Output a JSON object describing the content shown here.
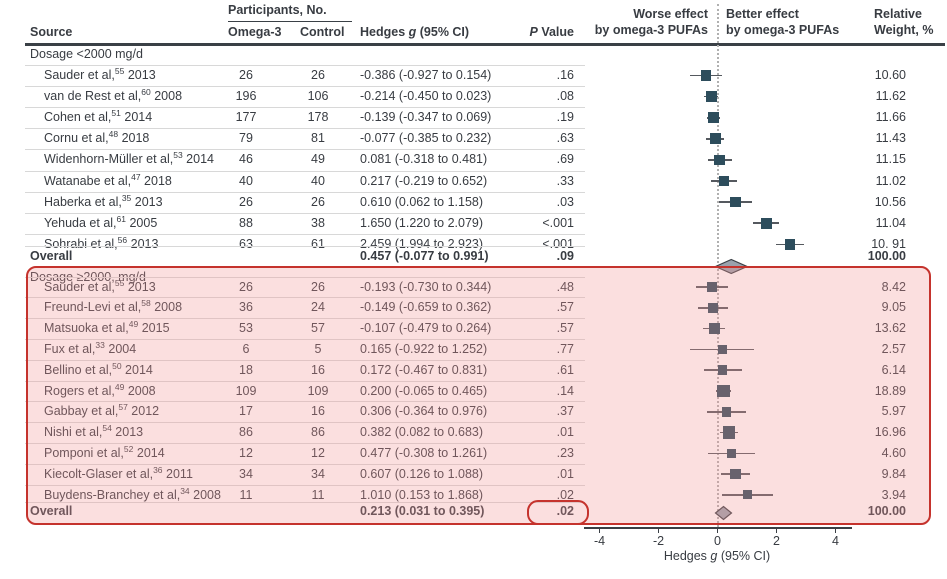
{
  "header": {
    "participants_group": "Participants, No.",
    "source": "Source",
    "omega3": "Omega-3",
    "control": "Control",
    "hedges_pre": "Hedges ",
    "hedges_it": "g",
    "hedges_post": " (95% CI)",
    "p_it": "P",
    "p_post": " Value",
    "worse_line1": "Worse effect",
    "worse_line2": "by omega-3 PUFAs",
    "better_line1": "Better effect",
    "better_line2": "by omega-3 PUFAs",
    "weight_line1": "Relative",
    "weight_line2": "Weight, %"
  },
  "axis": {
    "pre": "Hedges ",
    "it": "g",
    "post": " (95% CI)",
    "tick_labels": [
      "-4",
      "-2",
      "0",
      "2",
      "4"
    ]
  },
  "colors": {
    "text": "#383c42",
    "accent_red": "#c5332d",
    "marker_square": "#2d4d5c",
    "ci_line": "#55595f",
    "diamond_fill": "#9aa2ad",
    "diamond_stroke": "#3a3f45",
    "highlight_fill": "rgba(242,148,149,0.30)",
    "separator": "#d8d8d8",
    "dotted_line": "#b0b0b0"
  },
  "chart_data": {
    "type": "scatter",
    "variant": "forest-plot",
    "xlabel": "Hedges g (95% CI)",
    "xlim": [
      -4.5,
      4.6
    ],
    "x_ticks": [
      -4,
      -2,
      0,
      2,
      4
    ],
    "zero_reference": 0,
    "sections": [
      {
        "label": "Dosage <2000 mg/d",
        "highlighted": false,
        "studies": [
          {
            "name": "Sauder et al,",
            "ref": "55",
            "year": "2013",
            "omega3": "26",
            "control": "26",
            "g": -0.386,
            "lo": -0.927,
            "hi": 0.154,
            "ci_text": "-0.386 (-0.927 to 0.154)",
            "p": ".16",
            "weight": "10.60"
          },
          {
            "name": "van de Rest et al,",
            "ref": "60",
            "year": "2008",
            "omega3": "196",
            "control": "106",
            "g": -0.214,
            "lo": -0.45,
            "hi": 0.023,
            "ci_text": "-0.214 (-0.450 to 0.023)",
            "p": ".08",
            "weight": "11.62"
          },
          {
            "name": "Cohen et al,",
            "ref": "51",
            "year": "2014",
            "omega3": "177",
            "control": "178",
            "g": -0.139,
            "lo": -0.347,
            "hi": 0.069,
            "ci_text": "-0.139 (-0.347 to 0.069)",
            "p": ".19",
            "weight": "11.66"
          },
          {
            "name": "Cornu et al,",
            "ref": "48",
            "year": "2018",
            "omega3": "79",
            "control": "81",
            "g": -0.077,
            "lo": -0.385,
            "hi": 0.232,
            "ci_text": "-0.077 (-0.385 to 0.232)",
            "p": ".63",
            "weight": "11.43"
          },
          {
            "name": "Widenhorn-Müller et al,",
            "ref": "53",
            "year": "2014",
            "omega3": "46",
            "control": "49",
            "g": 0.081,
            "lo": -0.318,
            "hi": 0.481,
            "ci_text": "0.081 (-0.318 to 0.481)",
            "p": ".69",
            "weight": "11.15"
          },
          {
            "name": "Watanabe et al,",
            "ref": "47",
            "year": "2018",
            "omega3": "40",
            "control": "40",
            "g": 0.217,
            "lo": -0.219,
            "hi": 0.652,
            "ci_text": "0.217 (-0.219 to 0.652)",
            "p": ".33",
            "weight": "11.02"
          },
          {
            "name": "Haberka et al,",
            "ref": "35",
            "year": "2013",
            "omega3": "26",
            "control": "26",
            "g": 0.61,
            "lo": 0.062,
            "hi": 1.158,
            "ci_text": "0.610 (0.062 to 1.158)",
            "p": ".03",
            "weight": "10.56"
          },
          {
            "name": "Yehuda et al,",
            "ref": "61",
            "year": "2005",
            "omega3": "88",
            "control": "38",
            "g": 1.65,
            "lo": 1.22,
            "hi": 2.079,
            "ci_text": "1.650 (1.220 to 2.079)",
            "p": "<.001",
            "weight": "11.04"
          },
          {
            "name": "Sohrabi et al,",
            "ref": "56",
            "year": "2013",
            "omega3": "63",
            "control": "61",
            "g": 2.459,
            "lo": 1.994,
            "hi": 2.923,
            "ci_text": "2.459 (1.994 to 2.923)",
            "p": "<.001",
            "weight": "10. 91"
          }
        ],
        "overall": {
          "label": "Overall",
          "g": 0.457,
          "lo": -0.077,
          "hi": 0.991,
          "ci_text": "0.457 (-0.077 to 0.991)",
          "p": ".09",
          "weight": "100.00",
          "p_circled": false
        }
      },
      {
        "label": "Dosage ≥2000, mg/d",
        "highlighted": true,
        "studies": [
          {
            "name": "Sauder et al,",
            "ref": "55",
            "year": "2013",
            "omega3": "26",
            "control": "26",
            "g": -0.193,
            "lo": -0.73,
            "hi": 0.344,
            "ci_text": "-0.193 (-0.730 to 0.344)",
            "p": ".48",
            "weight": "8.42"
          },
          {
            "name": "Freund-Levi et al,",
            "ref": "58",
            "year": "2008",
            "omega3": "36",
            "control": "24",
            "g": -0.149,
            "lo": -0.659,
            "hi": 0.362,
            "ci_text": "-0.149 (-0.659 to 0.362)",
            "p": ".57",
            "weight": "9.05"
          },
          {
            "name": "Matsuoka et al,",
            "ref": "49",
            "year": "2015",
            "omega3": "53",
            "control": "57",
            "g": -0.107,
            "lo": -0.479,
            "hi": 0.264,
            "ci_text": "-0.107 (-0.479 to 0.264)",
            "p": ".57",
            "weight": "13.62"
          },
          {
            "name": "Fux et al,",
            "ref": "33",
            "year": "2004",
            "omega3": "6",
            "control": "5",
            "g": 0.165,
            "lo": -0.922,
            "hi": 1.252,
            "ci_text": "0.165 (-0.922 to 1.252)",
            "p": ".77",
            "weight": "2.57"
          },
          {
            "name": "Bellino et al,",
            "ref": "50",
            "year": "2014",
            "omega3": "18",
            "control": "16",
            "g": 0.172,
            "lo": -0.467,
            "hi": 0.831,
            "ci_text": "0.172 (-0.467 to 0.831)",
            "p": ".61",
            "weight": "6.14"
          },
          {
            "name": "Rogers et al,",
            "ref": "49",
            "year": "2008",
            "omega3": "109",
            "control": "109",
            "g": 0.2,
            "lo": -0.065,
            "hi": 0.465,
            "ci_text": "0.200 (-0.065 to 0.465)",
            "p": ".14",
            "weight": "18.89"
          },
          {
            "name": "Gabbay et al,",
            "ref": "57",
            "year": "2012",
            "omega3": "17",
            "control": "16",
            "g": 0.306,
            "lo": -0.364,
            "hi": 0.976,
            "ci_text": "0.306 (-0.364 to 0.976)",
            "p": ".37",
            "weight": "5.97"
          },
          {
            "name": "Nishi et al,",
            "ref": "54",
            "year": "2013",
            "omega3": "86",
            "control": "86",
            "g": 0.382,
            "lo": 0.082,
            "hi": 0.683,
            "ci_text": "0.382 (0.082 to 0.683)",
            "p": ".01",
            "weight": "16.96"
          },
          {
            "name": "Pomponi et al,",
            "ref": "52",
            "year": "2014",
            "omega3": "12",
            "control": "12",
            "g": 0.477,
            "lo": -0.308,
            "hi": 1.261,
            "ci_text": "0.477 (-0.308 to 1.261)",
            "p": ".23",
            "weight": "4.60"
          },
          {
            "name": "Kiecolt-Glaser et al,",
            "ref": "36",
            "year": "2011",
            "omega3": "34",
            "control": "34",
            "g": 0.607,
            "lo": 0.126,
            "hi": 1.088,
            "ci_text": "0.607 (0.126 to 1.088)",
            "p": ".01",
            "weight": "9.84"
          },
          {
            "name": "Buydens-Branchey et al,",
            "ref": "34",
            "year": "2008",
            "omega3": "11",
            "control": "11",
            "g": 1.01,
            "lo": 0.153,
            "hi": 1.868,
            "ci_text": "1.010 (0.153 to 1.868)",
            "p": ".02",
            "weight": "3.94"
          }
        ],
        "overall": {
          "label": "Overall",
          "g": 0.213,
          "lo": 0.031,
          "hi": 0.395,
          "ci_text": "0.213 (0.031 to 0.395)",
          "p": ".02",
          "weight": "100.00",
          "p_circled": true
        }
      }
    ]
  }
}
